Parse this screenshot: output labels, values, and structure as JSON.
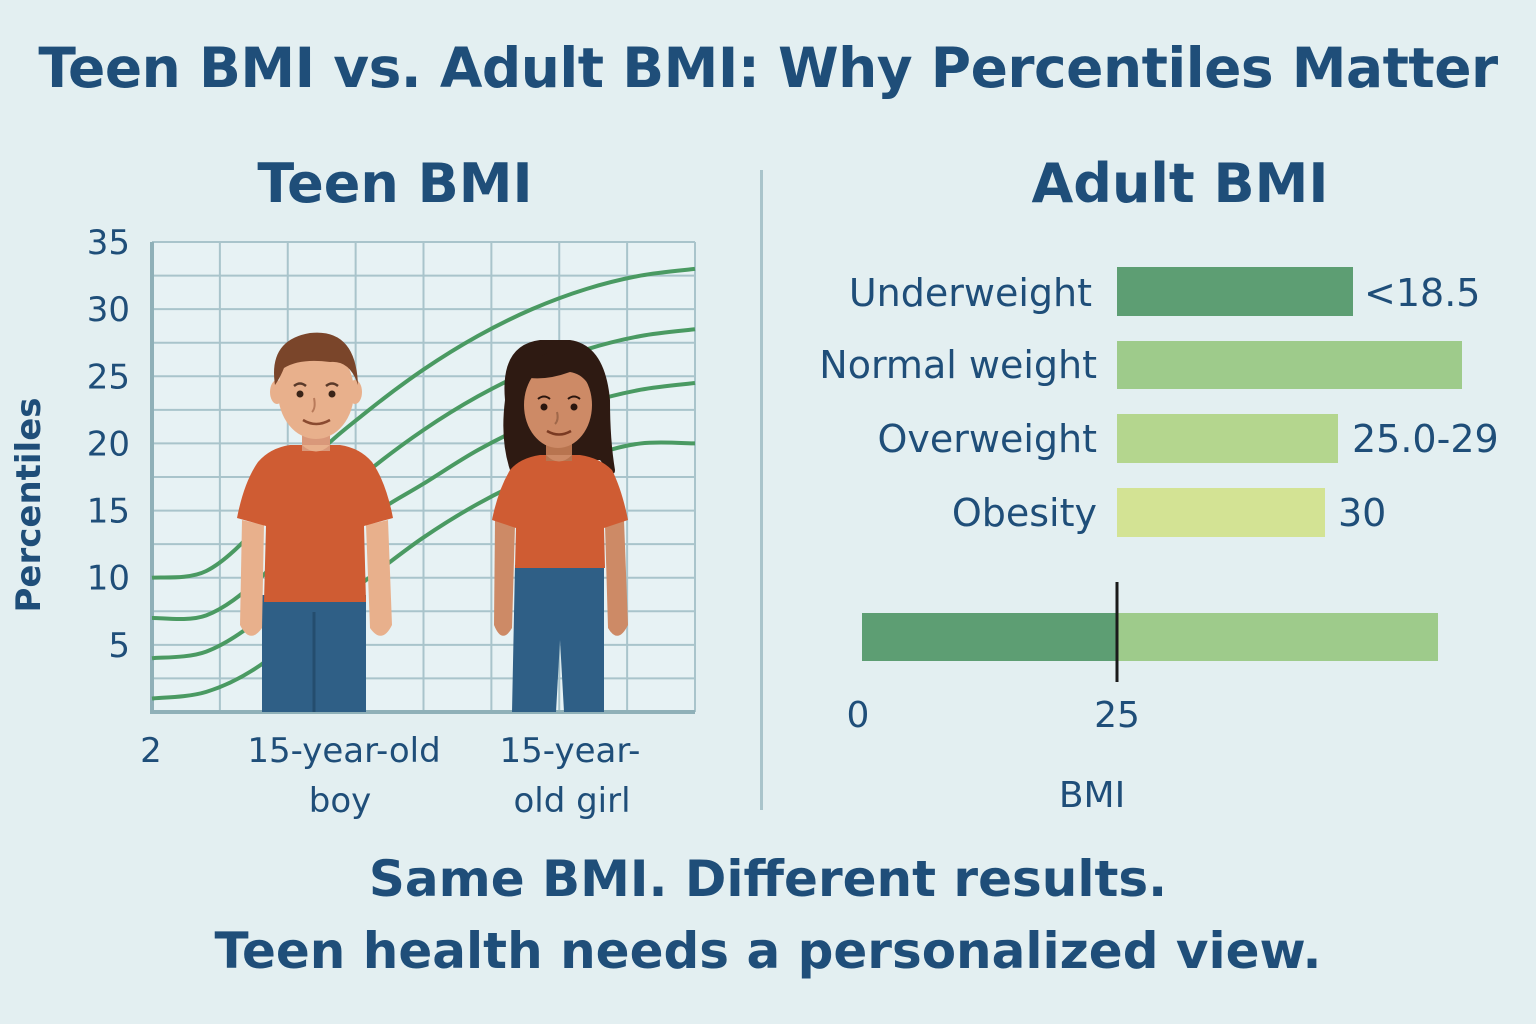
{
  "title": "Teen BMI vs. Adult BMI: Why Percentiles Matter",
  "colors": {
    "text": "#1f4e79",
    "grid": "#a9c4cb",
    "curve": "#4a9a62",
    "shirt": "#cf5c33",
    "pants": "#2f5f86",
    "skin": "#e8b08c",
    "skin_girl": "#cd8a66",
    "hair_boy": "#7a452a",
    "hair_girl": "#2e1a12",
    "underweight": "#5d9e73",
    "normal": "#9ecb8b",
    "overweight": "#b4d68e",
    "obesity": "#d3e394"
  },
  "teen": {
    "title": "Teen BMI",
    "ylabel": "Percentiles",
    "yticks": [
      "35",
      "30",
      "25",
      "20",
      "15",
      "10",
      "5"
    ],
    "xtick_start": "2",
    "boy_label": [
      "15-year-old",
      "boy"
    ],
    "girl_label": [
      "15-year-",
      "old girl"
    ]
  },
  "adult": {
    "title": "Adult BMI",
    "scale_ticks": [
      "0",
      "25"
    ],
    "scale_label": "BMI"
  },
  "chart_data": [
    {
      "type": "line",
      "title": "Teen BMI",
      "ylabel": "Percentiles",
      "ylim": [
        0,
        35
      ],
      "grid": true,
      "x": [
        0,
        1,
        2,
        3,
        4,
        5,
        6,
        7,
        8,
        9,
        10
      ],
      "series": [
        {
          "values": [
            10,
            10.5,
            14,
            19,
            22.5,
            25.5,
            28,
            30,
            31.5,
            32.5,
            33
          ]
        },
        {
          "values": [
            7,
            7.2,
            10,
            14.5,
            18,
            21,
            23.5,
            25.5,
            27,
            28,
            28.5
          ]
        },
        {
          "values": [
            4,
            4.5,
            7,
            11,
            14.5,
            17,
            19.5,
            21.5,
            23,
            24,
            24.5
          ]
        },
        {
          "values": [
            1,
            1.5,
            3.5,
            7,
            10,
            13,
            15.5,
            17.5,
            19,
            20,
            20
          ]
        }
      ]
    },
    {
      "type": "bar",
      "title": "Adult BMI",
      "categories": [
        "Underweight",
        "Normal weight",
        "Overweight",
        "Obesity"
      ],
      "value_labels": [
        "<18.5",
        "",
        "25.0-29",
        "30"
      ]
    }
  ],
  "footer": {
    "line1": "Same BMI. Different results.",
    "line2": "Teen health needs a personalized view."
  }
}
